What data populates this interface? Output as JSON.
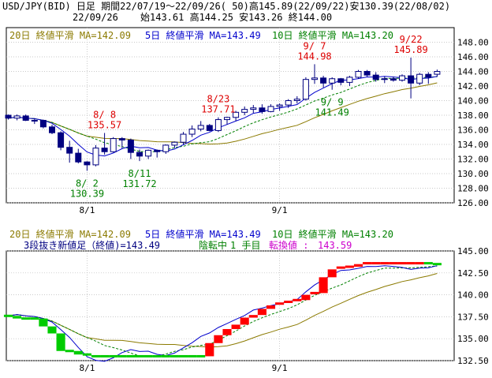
{
  "header": {
    "line1": "USD/JPY(BID) 日足 期間22/07/19～22/09/26( 50)高145.89(22/09/22)安130.39(22/08/02)",
    "line2_date": "22/09/26",
    "line2_ohlc": "始143.61 高144.25 安143.26 終144.00"
  },
  "colors": {
    "frame": "#000000",
    "grid": "#b8b8b8",
    "ma20": "#8b7a00",
    "ma5": "#0000cc",
    "ma10": "#008000",
    "up_candle_fill": "#ffffff",
    "down_candle_fill": "#000080",
    "candle_line": "#000080",
    "high_annot": "#dd0000",
    "low_annot": "#008000",
    "kagi_up": "#ff0000",
    "kagi_down": "#00cc00",
    "kagi_bar": "#0000aa",
    "status_magenta": "#cc00cc"
  },
  "chart_data": [
    {
      "type": "candlestick",
      "title": "USD/JPY(BID) 日足",
      "ylim": [
        126,
        150
      ],
      "yticks": [
        126,
        128,
        130,
        132,
        134,
        136,
        138,
        140,
        142,
        144,
        146,
        148
      ],
      "ytick_labels": [
        "126.00",
        "128.00",
        "130.00",
        "132.00",
        "134.00",
        "136.00",
        "138.00",
        "140.00",
        "142.00",
        "144.00",
        "146.00",
        "148.00"
      ],
      "xtick_labels": [
        "8/1",
        "9/1"
      ],
      "xtick_index": [
        9,
        31
      ],
      "legend": [
        {
          "key": "ma20",
          "text": "20日 終値平滑 MA=142.09"
        },
        {
          "key": "ma5",
          "text": "5日 終値平滑 MA=143.49"
        },
        {
          "key": "ma10",
          "text": "10日 終値平滑 MA=143.20"
        }
      ],
      "candles": [
        [
          138.0,
          138.1,
          137.4,
          137.6
        ],
        [
          137.6,
          138.1,
          137.3,
          137.9
        ],
        [
          137.9,
          138.1,
          137.2,
          137.3
        ],
        [
          137.3,
          137.6,
          136.8,
          137.3
        ],
        [
          137.3,
          137.4,
          136.2,
          136.4
        ],
        [
          136.4,
          136.7,
          135.4,
          135.6
        ],
        [
          135.6,
          135.8,
          133.2,
          133.6
        ],
        [
          133.6,
          134.5,
          131.5,
          132.8
        ],
        [
          132.8,
          133.4,
          131.4,
          131.6
        ],
        [
          131.6,
          131.7,
          130.39,
          131.2
        ],
        [
          131.2,
          133.9,
          131.0,
          133.5
        ],
        [
          133.5,
          135.57,
          132.6,
          133.0
        ],
        [
          133.0,
          135.0,
          132.9,
          134.8
        ],
        [
          134.8,
          135.0,
          133.5,
          134.6
        ],
        [
          134.6,
          134.8,
          132.0,
          132.9
        ],
        [
          132.9,
          133.3,
          131.72,
          132.4
        ],
        [
          132.4,
          133.3,
          132.0,
          133.2
        ],
        [
          133.2,
          133.3,
          132.2,
          133.0
        ],
        [
          133.0,
          134.0,
          132.7,
          133.9
        ],
        [
          133.9,
          134.4,
          133.5,
          134.3
        ],
        [
          134.3,
          135.7,
          134.0,
          135.4
        ],
        [
          135.4,
          136.6,
          135.0,
          136.1
        ],
        [
          136.1,
          137.2,
          135.8,
          136.6
        ],
        [
          136.6,
          136.8,
          135.8,
          135.9
        ],
        [
          135.9,
          137.71,
          135.7,
          137.4
        ],
        [
          137.4,
          137.8,
          136.7,
          137.7
        ],
        [
          137.7,
          138.6,
          137.2,
          138.4
        ],
        [
          138.4,
          139.2,
          138.0,
          138.8
        ],
        [
          138.8,
          139.4,
          138.3,
          139.0
        ],
        [
          139.0,
          139.5,
          138.2,
          138.5
        ],
        [
          138.5,
          139.5,
          138.4,
          139.2
        ],
        [
          139.2,
          139.6,
          138.6,
          139.4
        ],
        [
          139.4,
          140.2,
          139.0,
          140.0
        ],
        [
          140.0,
          140.6,
          139.6,
          140.2
        ],
        [
          140.2,
          143.2,
          140.0,
          142.9
        ],
        [
          142.9,
          144.98,
          142.3,
          143.1
        ],
        [
          143.1,
          143.4,
          141.8,
          142.4
        ],
        [
          142.4,
          143.2,
          141.49,
          143.0
        ],
        [
          143.0,
          143.1,
          142.1,
          142.5
        ],
        [
          142.5,
          143.4,
          142.0,
          143.2
        ],
        [
          143.2,
          144.2,
          143.0,
          144.0
        ],
        [
          144.0,
          144.2,
          143.3,
          143.5
        ],
        [
          143.5,
          143.9,
          142.6,
          142.9
        ],
        [
          142.9,
          143.3,
          142.4,
          143.0
        ],
        [
          143.0,
          143.3,
          142.6,
          142.8
        ],
        [
          142.8,
          143.6,
          142.6,
          143.4
        ],
        [
          143.4,
          145.89,
          140.3,
          142.4
        ],
        [
          142.4,
          143.8,
          142.1,
          143.6
        ],
        [
          143.6,
          143.9,
          142.3,
          143.2
        ],
        [
          143.61,
          144.25,
          143.26,
          144.0
        ]
      ],
      "annotations": [
        {
          "kind": "high",
          "date": "8/ 8",
          "value": "135.57",
          "index": 11
        },
        {
          "kind": "high",
          "date": "8/23",
          "value": "137.71",
          "index": 24
        },
        {
          "kind": "high",
          "date": "9/ 7",
          "value": "144.98",
          "index": 35
        },
        {
          "kind": "high",
          "date": "9/22",
          "value": "145.89",
          "index": 46
        },
        {
          "kind": "low",
          "date": "8/ 2",
          "value": "130.39",
          "index": 9
        },
        {
          "kind": "low",
          "date": "8/11",
          "value": "131.72",
          "index": 15
        },
        {
          "kind": "low",
          "date": "9/ 9",
          "value": "141.49",
          "index": 37
        }
      ]
    },
    {
      "type": "kagi",
      "title": "3段抜き新値足（終値)=143.49",
      "status_parts": [
        "陰転中",
        "1 手目",
        "転換値 :",
        "143.59"
      ],
      "ylim": [
        132.5,
        145
      ],
      "yticks": [
        132.5,
        135.0,
        137.5,
        140.0,
        142.5,
        145.0
      ],
      "ytick_labels": [
        "132.50",
        "135.00",
        "137.50",
        "140.00",
        "142.50",
        "145.00"
      ],
      "xtick_labels": [
        "8/1",
        "9/1"
      ],
      "xtick_index": [
        9,
        31
      ],
      "legend": [
        {
          "key": "ma20",
          "text": "20日 終値平滑 MA=142.09"
        },
        {
          "key": "ma5",
          "text": "5日 終値平滑 MA=143.49"
        },
        {
          "key": "ma10",
          "text": "10日 終値平滑 MA=143.20"
        }
      ],
      "bricks": [
        {
          "i": 0,
          "open": 137.6,
          "close": 137.6,
          "dir": "down"
        },
        {
          "i": 1,
          "open": 137.6,
          "close": 137.3,
          "dir": "down"
        },
        {
          "i": 2,
          "open": 137.3,
          "close": 137.3,
          "dir": "down"
        },
        {
          "i": 3,
          "open": 137.3,
          "close": 137.3,
          "dir": "down"
        },
        {
          "i": 4,
          "open": 137.3,
          "close": 136.4,
          "dir": "down"
        },
        {
          "i": 5,
          "open": 136.4,
          "close": 135.6,
          "dir": "down"
        },
        {
          "i": 6,
          "open": 135.6,
          "close": 133.6,
          "dir": "down"
        },
        {
          "i": 7,
          "open": 133.6,
          "close": 133.6,
          "dir": "down"
        },
        {
          "i": 8,
          "open": 133.6,
          "close": 133.2,
          "dir": "down"
        },
        {
          "i": 9,
          "open": 133.2,
          "close": 133.0,
          "dir": "down"
        },
        {
          "i": 10,
          "open": 133.0,
          "close": 133.0,
          "dir": "down"
        },
        {
          "i": 11,
          "open": 133.0,
          "close": 133.0,
          "dir": "down"
        },
        {
          "i": 12,
          "open": 133.0,
          "close": 133.0,
          "dir": "down"
        },
        {
          "i": 13,
          "open": 133.0,
          "close": 133.0,
          "dir": "down"
        },
        {
          "i": 14,
          "open": 133.0,
          "close": 133.0,
          "dir": "down"
        },
        {
          "i": 15,
          "open": 133.0,
          "close": 133.0,
          "dir": "down"
        },
        {
          "i": 16,
          "open": 133.0,
          "close": 133.0,
          "dir": "down"
        },
        {
          "i": 17,
          "open": 133.0,
          "close": 133.0,
          "dir": "down"
        },
        {
          "i": 18,
          "open": 133.0,
          "close": 133.0,
          "dir": "down"
        },
        {
          "i": 19,
          "open": 133.0,
          "close": 133.0,
          "dir": "down"
        },
        {
          "i": 20,
          "open": 133.0,
          "close": 133.0,
          "dir": "down"
        },
        {
          "i": 21,
          "open": 133.0,
          "close": 133.0,
          "dir": "down"
        },
        {
          "i": 22,
          "open": 133.0,
          "close": 133.0,
          "dir": "down"
        },
        {
          "i": 23,
          "open": 133.0,
          "close": 134.5,
          "dir": "up"
        },
        {
          "i": 24,
          "open": 134.5,
          "close": 135.4,
          "dir": "up"
        },
        {
          "i": 25,
          "open": 135.4,
          "close": 136.1,
          "dir": "up"
        },
        {
          "i": 26,
          "open": 136.1,
          "close": 136.6,
          "dir": "up"
        },
        {
          "i": 27,
          "open": 136.6,
          "close": 137.4,
          "dir": "up"
        },
        {
          "i": 28,
          "open": 137.4,
          "close": 137.7,
          "dir": "up"
        },
        {
          "i": 29,
          "open": 137.7,
          "close": 138.4,
          "dir": "up"
        },
        {
          "i": 30,
          "open": 138.4,
          "close": 138.8,
          "dir": "up"
        },
        {
          "i": 31,
          "open": 138.8,
          "close": 139.0,
          "dir": "up"
        },
        {
          "i": 32,
          "open": 139.0,
          "close": 139.2,
          "dir": "up"
        },
        {
          "i": 33,
          "open": 139.2,
          "close": 139.4,
          "dir": "up"
        },
        {
          "i": 34,
          "open": 139.4,
          "close": 140.0,
          "dir": "up"
        },
        {
          "i": 35,
          "open": 140.0,
          "close": 140.2,
          "dir": "up"
        },
        {
          "i": 36,
          "open": 140.2,
          "close": 142.0,
          "dir": "up"
        },
        {
          "i": 37,
          "open": 142.0,
          "close": 142.9,
          "dir": "up"
        },
        {
          "i": 38,
          "open": 142.9,
          "close": 143.1,
          "dir": "up"
        },
        {
          "i": 39,
          "open": 143.1,
          "close": 143.2,
          "dir": "up"
        },
        {
          "i": 40,
          "open": 143.2,
          "close": 143.5,
          "dir": "up"
        },
        {
          "i": 41,
          "open": 143.5,
          "close": 143.6,
          "dir": "up"
        },
        {
          "i": 42,
          "open": 143.6,
          "close": 143.6,
          "dir": "up"
        },
        {
          "i": 43,
          "open": 143.6,
          "close": 143.6,
          "dir": "up"
        },
        {
          "i": 44,
          "open": 143.6,
          "close": 143.6,
          "dir": "up"
        },
        {
          "i": 45,
          "open": 143.6,
          "close": 143.6,
          "dir": "up"
        },
        {
          "i": 46,
          "open": 143.6,
          "close": 143.6,
          "dir": "up"
        },
        {
          "i": 47,
          "open": 143.6,
          "close": 143.6,
          "dir": "up"
        },
        {
          "i": 48,
          "open": 143.6,
          "close": 143.5,
          "dir": "down"
        },
        {
          "i": 49,
          "open": 143.5,
          "close": 143.5,
          "dir": "down"
        }
      ]
    }
  ]
}
